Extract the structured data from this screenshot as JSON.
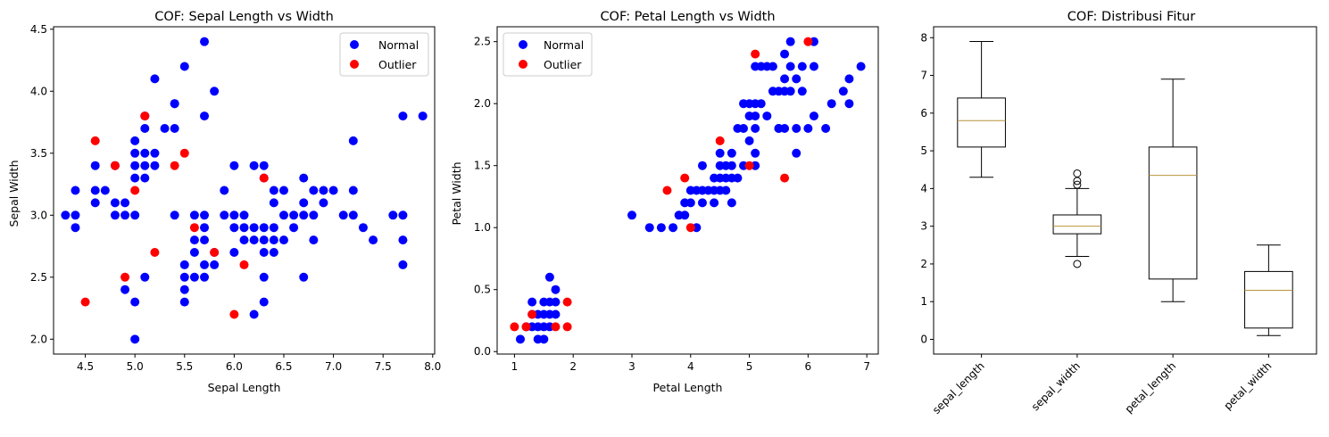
{
  "colors": {
    "normal": "#0000ff",
    "outlier": "#ff0000",
    "median": "#b8963c",
    "frame": "#000000"
  },
  "chart_data": [
    {
      "type": "scatter",
      "title": "COF: Sepal Length vs Width",
      "xlabel": "Sepal Length",
      "ylabel": "Sepal Width",
      "xlim": [
        4.18,
        8.02
      ],
      "ylim": [
        1.88,
        4.52
      ],
      "xticks": [
        4.5,
        5.0,
        5.5,
        6.0,
        6.5,
        7.0,
        7.5,
        8.0
      ],
      "xtick_labels": [
        "4.5",
        "5.0",
        "5.5",
        "6.0",
        "6.5",
        "7.0",
        "7.5",
        "8.0"
      ],
      "yticks": [
        2.0,
        2.5,
        3.0,
        3.5,
        4.0,
        4.5
      ],
      "ytick_labels": [
        "2.0",
        "2.5",
        "3.0",
        "3.5",
        "4.0",
        "4.5"
      ],
      "legend": "top-right",
      "series": [
        {
          "name": "Normal",
          "color": "#0000ff",
          "points": [
            [
              4.3,
              3.0
            ],
            [
              4.4,
              3.0
            ],
            [
              4.4,
              3.2
            ],
            [
              4.4,
              2.9
            ],
            [
              4.6,
              3.1
            ],
            [
              4.6,
              3.4
            ],
            [
              4.6,
              3.2
            ],
            [
              4.7,
              3.2
            ],
            [
              4.8,
              3.0
            ],
            [
              4.8,
              3.1
            ],
            [
              4.8,
              3.4
            ],
            [
              4.9,
              3.0
            ],
            [
              4.9,
              3.1
            ],
            [
              4.9,
              2.4
            ],
            [
              5.0,
              3.6
            ],
            [
              5.0,
              3.4
            ],
            [
              5.0,
              3.0
            ],
            [
              5.0,
              3.3
            ],
            [
              5.0,
              3.5
            ],
            [
              5.0,
              2.3
            ],
            [
              5.0,
              2.0
            ],
            [
              5.1,
              3.5
            ],
            [
              5.1,
              3.8
            ],
            [
              5.1,
              3.7
            ],
            [
              5.1,
              3.3
            ],
            [
              5.1,
              3.4
            ],
            [
              5.1,
              2.5
            ],
            [
              5.2,
              3.5
            ],
            [
              5.2,
              3.4
            ],
            [
              5.2,
              4.1
            ],
            [
              5.3,
              3.7
            ],
            [
              5.4,
              3.9
            ],
            [
              5.4,
              3.7
            ],
            [
              5.4,
              3.9
            ],
            [
              5.4,
              3.0
            ],
            [
              5.5,
              4.2
            ],
            [
              5.5,
              2.3
            ],
            [
              5.5,
              2.4
            ],
            [
              5.5,
              2.6
            ],
            [
              5.5,
              2.5
            ],
            [
              5.6,
              3.0
            ],
            [
              5.6,
              2.5
            ],
            [
              5.6,
              2.7
            ],
            [
              5.6,
              2.8
            ],
            [
              5.7,
              4.4
            ],
            [
              5.7,
              3.8
            ],
            [
              5.7,
              2.8
            ],
            [
              5.7,
              2.6
            ],
            [
              5.7,
              3.0
            ],
            [
              5.7,
              2.9
            ],
            [
              5.7,
              2.5
            ],
            [
              5.8,
              4.0
            ],
            [
              5.8,
              2.7
            ],
            [
              5.8,
              2.6
            ],
            [
              5.9,
              3.0
            ],
            [
              5.9,
              3.2
            ],
            [
              6.0,
              3.4
            ],
            [
              6.0,
              2.7
            ],
            [
              6.0,
              3.0
            ],
            [
              6.0,
              2.9
            ],
            [
              6.1,
              2.8
            ],
            [
              6.1,
              3.0
            ],
            [
              6.1,
              2.9
            ],
            [
              6.2,
              3.4
            ],
            [
              6.2,
              2.2
            ],
            [
              6.2,
              2.9
            ],
            [
              6.2,
              2.8
            ],
            [
              6.3,
              3.3
            ],
            [
              6.3,
              2.3
            ],
            [
              6.3,
              2.5
            ],
            [
              6.3,
              2.9
            ],
            [
              6.3,
              2.8
            ],
            [
              6.3,
              2.7
            ],
            [
              6.3,
              3.4
            ],
            [
              6.4,
              3.2
            ],
            [
              6.4,
              2.9
            ],
            [
              6.4,
              2.8
            ],
            [
              6.4,
              2.7
            ],
            [
              6.4,
              3.1
            ],
            [
              6.5,
              2.8
            ],
            [
              6.5,
              3.0
            ],
            [
              6.5,
              3.2
            ],
            [
              6.6,
              2.9
            ],
            [
              6.6,
              3.0
            ],
            [
              6.7,
              3.1
            ],
            [
              6.7,
              3.0
            ],
            [
              6.7,
              2.5
            ],
            [
              6.7,
              3.3
            ],
            [
              6.8,
              2.8
            ],
            [
              6.8,
              3.2
            ],
            [
              6.8,
              3.0
            ],
            [
              6.9,
              3.1
            ],
            [
              6.9,
              3.2
            ],
            [
              7.0,
              3.2
            ],
            [
              7.1,
              3.0
            ],
            [
              7.2,
              3.6
            ],
            [
              7.2,
              3.2
            ],
            [
              7.2,
              3.0
            ],
            [
              7.3,
              2.9
            ],
            [
              7.4,
              2.8
            ],
            [
              7.6,
              3.0
            ],
            [
              7.7,
              3.8
            ],
            [
              7.7,
              2.6
            ],
            [
              7.7,
              2.8
            ],
            [
              7.7,
              3.0
            ],
            [
              7.9,
              3.8
            ]
          ]
        },
        {
          "name": "Outlier",
          "color": "#ff0000",
          "points": [
            [
              4.5,
              2.3
            ],
            [
              4.6,
              3.6
            ],
            [
              4.8,
              3.4
            ],
            [
              4.9,
              2.5
            ],
            [
              5.0,
              3.2
            ],
            [
              5.1,
              3.8
            ],
            [
              5.2,
              2.7
            ],
            [
              5.4,
              3.4
            ],
            [
              5.5,
              3.5
            ],
            [
              5.6,
              2.9
            ],
            [
              5.8,
              2.7
            ],
            [
              6.0,
              2.2
            ],
            [
              6.1,
              2.6
            ],
            [
              6.3,
              3.3
            ]
          ]
        }
      ]
    },
    {
      "type": "scatter",
      "title": "COF: Petal Length vs Width",
      "xlabel": "Petal Length",
      "ylabel": "Petal Width",
      "xlim": [
        0.705,
        7.195
      ],
      "ylim": [
        -0.02,
        2.62
      ],
      "xticks": [
        1,
        2,
        3,
        4,
        5,
        6,
        7
      ],
      "xtick_labels": [
        "1",
        "2",
        "3",
        "4",
        "5",
        "6",
        "7"
      ],
      "yticks": [
        0.0,
        0.5,
        1.0,
        1.5,
        2.0,
        2.5
      ],
      "ytick_labels": [
        "0.0",
        "0.5",
        "1.0",
        "1.5",
        "2.0",
        "2.5"
      ],
      "legend": "top-left",
      "series": [
        {
          "name": "Normal",
          "color": "#0000ff",
          "points": [
            [
              1.1,
              0.1
            ],
            [
              1.2,
              0.2
            ],
            [
              1.3,
              0.2
            ],
            [
              1.3,
              0.3
            ],
            [
              1.3,
              0.4
            ],
            [
              1.4,
              0.2
            ],
            [
              1.4,
              0.1
            ],
            [
              1.4,
              0.3
            ],
            [
              1.5,
              0.2
            ],
            [
              1.5,
              0.1
            ],
            [
              1.5,
              0.4
            ],
            [
              1.5,
              0.3
            ],
            [
              1.6,
              0.2
            ],
            [
              1.6,
              0.4
            ],
            [
              1.6,
              0.6
            ],
            [
              1.6,
              0.3
            ],
            [
              1.7,
              0.4
            ],
            [
              1.7,
              0.5
            ],
            [
              1.7,
              0.3
            ],
            [
              3.0,
              1.1
            ],
            [
              3.3,
              1.0
            ],
            [
              3.5,
              1.0
            ],
            [
              3.7,
              1.0
            ],
            [
              3.8,
              1.1
            ],
            [
              3.9,
              1.1
            ],
            [
              3.9,
              1.2
            ],
            [
              4.0,
              1.3
            ],
            [
              4.0,
              1.2
            ],
            [
              4.1,
              1.0
            ],
            [
              4.1,
              1.3
            ],
            [
              4.2,
              1.3
            ],
            [
              4.2,
              1.5
            ],
            [
              4.2,
              1.2
            ],
            [
              4.3,
              1.3
            ],
            [
              4.4,
              1.3
            ],
            [
              4.4,
              1.4
            ],
            [
              4.4,
              1.2
            ],
            [
              4.5,
              1.5
            ],
            [
              4.5,
              1.3
            ],
            [
              4.5,
              1.6
            ],
            [
              4.5,
              1.4
            ],
            [
              4.6,
              1.5
            ],
            [
              4.6,
              1.3
            ],
            [
              4.6,
              1.4
            ],
            [
              4.7,
              1.4
            ],
            [
              4.7,
              1.6
            ],
            [
              4.7,
              1.2
            ],
            [
              4.7,
              1.5
            ],
            [
              4.8,
              1.8
            ],
            [
              4.8,
              1.4
            ],
            [
              4.9,
              1.5
            ],
            [
              4.9,
              1.8
            ],
            [
              4.9,
              2.0
            ],
            [
              5.0,
              1.7
            ],
            [
              5.0,
              2.0
            ],
            [
              5.0,
              1.9
            ],
            [
              5.1,
              1.6
            ],
            [
              5.1,
              1.9
            ],
            [
              5.1,
              2.0
            ],
            [
              5.1,
              2.3
            ],
            [
              5.1,
              1.8
            ],
            [
              5.1,
              1.5
            ],
            [
              5.2,
              2.3
            ],
            [
              5.2,
              2.0
            ],
            [
              5.3,
              1.9
            ],
            [
              5.3,
              2.3
            ],
            [
              5.4,
              2.1
            ],
            [
              5.4,
              2.3
            ],
            [
              5.5,
              1.8
            ],
            [
              5.5,
              2.1
            ],
            [
              5.5,
              1.8
            ],
            [
              5.6,
              2.2
            ],
            [
              5.6,
              1.8
            ],
            [
              5.6,
              2.1
            ],
            [
              5.6,
              2.4
            ],
            [
              5.7,
              2.1
            ],
            [
              5.7,
              2.3
            ],
            [
              5.7,
              2.5
            ],
            [
              5.8,
              1.8
            ],
            [
              5.8,
              2.2
            ],
            [
              5.8,
              1.6
            ],
            [
              5.9,
              2.3
            ],
            [
              5.9,
              2.1
            ],
            [
              6.0,
              1.8
            ],
            [
              6.1,
              2.3
            ],
            [
              6.1,
              1.9
            ],
            [
              6.1,
              2.5
            ],
            [
              6.3,
              1.8
            ],
            [
              6.4,
              2.0
            ],
            [
              6.6,
              2.1
            ],
            [
              6.7,
              2.2
            ],
            [
              6.7,
              2.0
            ],
            [
              6.9,
              2.3
            ]
          ]
        },
        {
          "name": "Outlier",
          "color": "#ff0000",
          "points": [
            [
              1.0,
              0.2
            ],
            [
              1.2,
              0.2
            ],
            [
              1.3,
              0.3
            ],
            [
              1.7,
              0.2
            ],
            [
              1.9,
              0.4
            ],
            [
              1.9,
              0.2
            ],
            [
              3.6,
              1.3
            ],
            [
              3.9,
              1.4
            ],
            [
              4.0,
              1.0
            ],
            [
              4.5,
              1.7
            ],
            [
              5.0,
              1.5
            ],
            [
              5.1,
              2.4
            ],
            [
              5.6,
              1.4
            ],
            [
              6.0,
              2.5
            ]
          ]
        }
      ]
    },
    {
      "type": "boxplot",
      "title": "COF: Distribusi Fitur",
      "ylim": [
        -0.39,
        8.29
      ],
      "yticks": [
        0,
        1,
        2,
        3,
        4,
        5,
        6,
        7,
        8
      ],
      "ytick_labels": [
        "0",
        "1",
        "2",
        "3",
        "4",
        "5",
        "6",
        "7",
        "8"
      ],
      "categories": [
        "sepal_length",
        "sepal_width",
        "petal_length",
        "petal_width"
      ],
      "boxes": [
        {
          "whisker_low": 4.3,
          "q1": 5.1,
          "median": 5.8,
          "q3": 6.4,
          "whisker_high": 7.9,
          "fliers": []
        },
        {
          "whisker_low": 2.2,
          "q1": 2.8,
          "median": 3.0,
          "q3": 3.3,
          "whisker_high": 4.0,
          "fliers": [
            2.0,
            4.1,
            4.2,
            4.4
          ]
        },
        {
          "whisker_low": 1.0,
          "q1": 1.6,
          "median": 4.35,
          "q3": 5.1,
          "whisker_high": 6.9,
          "fliers": []
        },
        {
          "whisker_low": 0.1,
          "q1": 0.3,
          "median": 1.3,
          "q3": 1.8,
          "whisker_high": 2.5,
          "fliers": []
        }
      ]
    }
  ]
}
